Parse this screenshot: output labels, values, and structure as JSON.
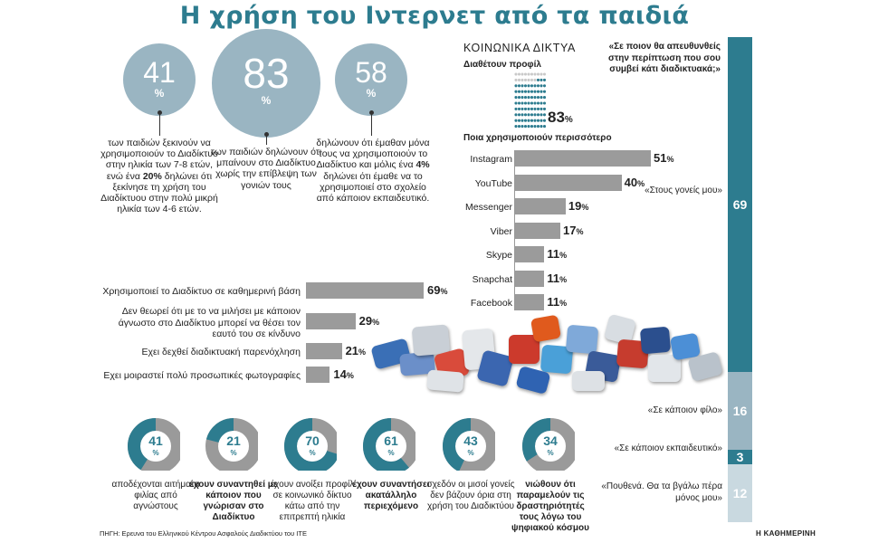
{
  "title": "Η χρήση του Ιντερνετ από τα παιδιά",
  "circles": [
    {
      "value": "41",
      "unit": "%",
      "text_parts": [
        "των παιδιών ξεκινούν να χρησιμοποιούν το Διαδίκτυο στην ηλικία των 7-8 ετών, ενώ ένα ",
        "20%",
        " δηλώνει ότι ξεκίνησε τη χρήση του Διαδίκτυου στην πολύ μικρή ηλικία των 4-6 ετών."
      ]
    },
    {
      "value": "83",
      "unit": "%",
      "text_parts": [
        "των παιδιών δηλώνουν ότι μπαίνουν στο Διαδίκτυο χωρίς την επίβλεψη των γονιών τους",
        "",
        ""
      ]
    },
    {
      "value": "58",
      "unit": "%",
      "text_parts": [
        "δηλώνουν ότι έμαθαν μόνα τους να χρησιμοποιούν το Διαδίκτυο και μόλις ένα ",
        "4%",
        " δηλώνει ότι έμαθε να το χρησιμοποιεί στο σχολείο από κάποιον εκπαιδευτικό."
      ]
    }
  ],
  "social": {
    "heading": "ΚΟΙΝΩΝΙΚΑ ΔΙΚΤΥΑ",
    "profile_label": "Διαθέτουν προφίλ",
    "profile_value": "83",
    "profile_unit": "%",
    "most_label": "Ποια χρησιμοποιούν περισσότερο",
    "dot_color": "#2d7c8f",
    "dot_empty_color": "#c9c9c9"
  },
  "question": "«Σε ποιον θα απευθυνθείς στην περίπτωση που σου συμβεί κάτι διαδικτυακά;»",
  "chart_data": [
    {
      "type": "bar",
      "title": "Ποια χρησιμοποιούν περισσότερο",
      "categories": [
        "Instagram",
        "YouTube",
        "Messenger",
        "Viber",
        "Skype",
        "Snapchat",
        "Facebook"
      ],
      "values": [
        51,
        40,
        19,
        17,
        11,
        11,
        11
      ],
      "unit": "%"
    },
    {
      "type": "bar",
      "categories": [
        "Χρησιμοποιεί το Διαδίκτυο σε καθημερινή βάση",
        "Δεν θεωρεί ότι με το να μιλήσει με κάποιον άγνωστο στο Διαδίκτυο μπορεί να θέσει τον εαυτό του σε κίνδυνο",
        "Εχει δεχθεί διαδικτυακή παρενόχληση",
        "Εχει μοιραστεί πολύ προσωπικές φωτογραφίες"
      ],
      "values": [
        69,
        29,
        21,
        14
      ],
      "unit": "%"
    },
    {
      "type": "bar",
      "title": "«Σε ποιον θα απευθυνθείς στην περίπτωση που σου συμβεί κάτι διαδικτυακά;»",
      "categories": [
        "«Στους γονείς μου»",
        "«Σε κάποιον φίλο»",
        "«Σε κάποιον εκπαιδευτικό»",
        "«Πουθενά. Θα τα βγάλω πέρα μόνος μου»"
      ],
      "values": [
        69,
        16,
        3,
        12
      ],
      "colors": [
        "#2d7c8f",
        "#9ab5c2",
        "#2d7c8f",
        "#c9d9e0"
      ]
    },
    {
      "type": "pie",
      "categories": [
        "αποδέχονται αιτήματα φιλίας από αγνώστους",
        "έχουν συναντηθεί με κάποιον που γνώρισαν στο Διαδίκτυο",
        "έχουν ανοίξει προφίλ σε κοινωνικό δίκτυο κάτω από την επιτρεπτή ηλικία",
        "έχουν συναντήσει ακατάλληλο περιεχόμενο",
        "σχεδόν οι μισοί γονείς δεν βάζουν όρια στη χρήση του Διαδικτύου",
        "νιώθουν ότι παραμελούν τις δραστηριότητές τους λόγω του ψηφιακού κόσμου"
      ],
      "values": [
        41,
        21,
        70,
        61,
        43,
        34
      ],
      "unit": "%",
      "bold": [
        false,
        true,
        false,
        true,
        false,
        true
      ],
      "fill_color": "#2d7c8f",
      "rest_color": "#9a9a9a"
    }
  ],
  "source": "ΠΗΓΗ: Ερευνα του Ελληνικού Κέντρου Ασφαλούς Διαδικτύου του ΙΤΕ",
  "brand": "Η ΚΑΘΗΜΕΡΙΝΗ"
}
